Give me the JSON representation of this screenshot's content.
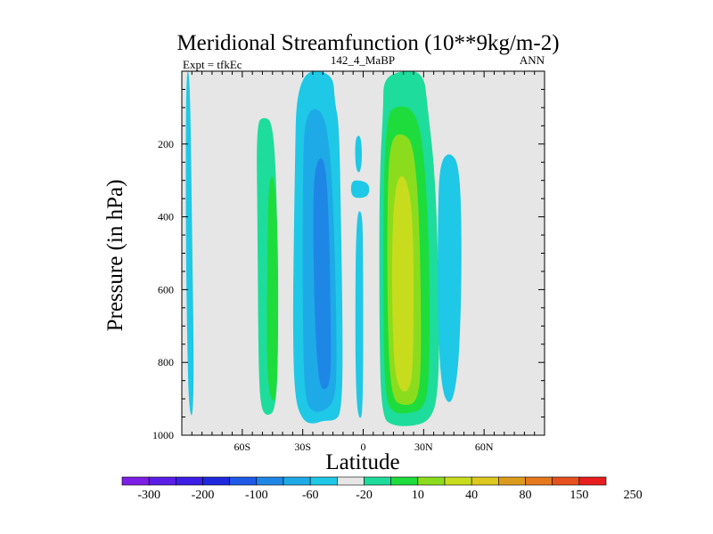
{
  "chart_data": {
    "type": "heatmap",
    "title": "Meridional Streamfunction (10**9kg/m-2)",
    "subtitle_left": "Expt = tfkEc",
    "subtitle_center": "142_4_MaBP",
    "subtitle_right": "ANN",
    "xlabel": "Latitude",
    "ylabel": "Pressure (in hPa)",
    "xlim": [
      -90,
      90
    ],
    "ylim": [
      0,
      1000
    ],
    "y_reversed": true,
    "x_ticks": [
      {
        "value": -60,
        "label": "60S"
      },
      {
        "value": -30,
        "label": "30S"
      },
      {
        "value": 0,
        "label": "0"
      },
      {
        "value": 30,
        "label": "30N"
      },
      {
        "value": 60,
        "label": "60N"
      }
    ],
    "y_ticks": [
      {
        "value": 200,
        "label": "200"
      },
      {
        "value": 400,
        "label": "400"
      },
      {
        "value": 600,
        "label": "600"
      },
      {
        "value": 800,
        "label": "800"
      },
      {
        "value": 1000,
        "label": "1000"
      }
    ],
    "background_color": "#e6e6e6",
    "colorbar": {
      "colors": [
        "#7d1ee6",
        "#5a1ee6",
        "#3c1ee6",
        "#1e28dc",
        "#1e5ae6",
        "#1e87e6",
        "#1eaae6",
        "#1ec8e6",
        "#e6e6e6",
        "#1edc9b",
        "#1edc3c",
        "#8cdc1e",
        "#c8dc1e",
        "#dcc81e",
        "#dc9b1e",
        "#e6781e",
        "#e6501e",
        "#e61e1e"
      ],
      "labels": [
        "-300",
        "-200",
        "-100",
        "-60",
        "-20",
        "10",
        "40",
        "80",
        "150",
        "250"
      ]
    },
    "contours": [
      {
        "color": "#1ec8e6",
        "points": [
          [
            -88,
            0
          ],
          [
            -86,
            0
          ],
          [
            -85,
            400
          ],
          [
            -84,
            800
          ],
          [
            -84.5,
            950
          ],
          [
            -86,
            940
          ],
          [
            -87,
            850
          ],
          [
            -88,
            500
          ]
        ]
      },
      {
        "color": "#1edc9b",
        "points": [
          [
            -53,
            140
          ],
          [
            -49,
            125
          ],
          [
            -45,
            140
          ],
          [
            -43,
            300
          ],
          [
            -42,
            700
          ],
          [
            -43,
            930
          ],
          [
            -48,
            950
          ],
          [
            -51,
            920
          ],
          [
            -52,
            800
          ],
          [
            -52.5,
            400
          ]
        ]
      },
      {
        "color": "#1edc3c",
        "points": [
          [
            -47,
            300
          ],
          [
            -44,
            280
          ],
          [
            -42,
            500
          ],
          [
            -42.5,
            900
          ],
          [
            -46,
            910
          ],
          [
            -48,
            800
          ],
          [
            -47.5,
            500
          ]
        ]
      },
      {
        "color": "#1ec8e6",
        "points": [
          [
            -33,
            0
          ],
          [
            -15,
            0
          ],
          [
            -14,
            90
          ],
          [
            -12,
            140
          ],
          [
            -11,
            400
          ],
          [
            -10,
            800
          ],
          [
            -11,
            940
          ],
          [
            -14,
            960
          ],
          [
            -20,
            960
          ],
          [
            -25,
            970
          ],
          [
            -30,
            960
          ],
          [
            -34,
            900
          ],
          [
            -35,
            700
          ],
          [
            -34,
            300
          ]
        ]
      },
      {
        "color": "#1eaae6",
        "points": [
          [
            -29,
            110
          ],
          [
            -20,
            100
          ],
          [
            -16,
            230
          ],
          [
            -14,
            500
          ],
          [
            -13,
            800
          ],
          [
            -14,
            900
          ],
          [
            -18,
            930
          ],
          [
            -25,
            940
          ],
          [
            -29,
            900
          ],
          [
            -30,
            700
          ],
          [
            -30,
            300
          ]
        ]
      },
      {
        "color": "#1e87e6",
        "points": [
          [
            -24,
            250
          ],
          [
            -19,
            230
          ],
          [
            -17,
            400
          ],
          [
            -16,
            700
          ],
          [
            -16,
            850
          ],
          [
            -19,
            880
          ],
          [
            -22,
            860
          ],
          [
            -24,
            700
          ],
          [
            -25,
            400
          ]
        ]
      },
      {
        "color": "#1ec8e6",
        "points": [
          [
            -4,
            180
          ],
          [
            -1,
            175
          ],
          [
            -0.5,
            250
          ],
          [
            -2,
            285
          ],
          [
            -4,
            260
          ]
        ]
      },
      {
        "color": "#1ec8e6",
        "points": [
          [
            -6,
            300
          ],
          [
            -1,
            300
          ],
          [
            3,
            310
          ],
          [
            3,
            340
          ],
          [
            -1,
            350
          ],
          [
            -6,
            345
          ]
        ]
      },
      {
        "color": "#1ec8e6",
        "points": [
          [
            -3.5,
            390
          ],
          [
            -0.5,
            380
          ],
          [
            0,
            500
          ],
          [
            0,
            940
          ],
          [
            -2,
            960
          ],
          [
            -3.5,
            900
          ],
          [
            -4,
            700
          ]
        ]
      },
      {
        "color": "#1edc9b",
        "points": [
          [
            10,
            25
          ],
          [
            17,
            0
          ],
          [
            30,
            0
          ],
          [
            32,
            100
          ],
          [
            36,
            300
          ],
          [
            38,
            700
          ],
          [
            37,
            900
          ],
          [
            33,
            960
          ],
          [
            25,
            975
          ],
          [
            15,
            975
          ],
          [
            9,
            950
          ],
          [
            8,
            700
          ],
          [
            8,
            300
          ],
          [
            10,
            100
          ]
        ]
      },
      {
        "color": "#1edc3c",
        "points": [
          [
            12,
            120
          ],
          [
            16,
            95
          ],
          [
            25,
            100
          ],
          [
            30,
            200
          ],
          [
            33,
            500
          ],
          [
            33,
            850
          ],
          [
            30,
            930
          ],
          [
            22,
            940
          ],
          [
            15,
            940
          ],
          [
            11,
            900
          ],
          [
            10,
            700
          ],
          [
            10,
            300
          ]
        ]
      },
      {
        "color": "#8cdc1e",
        "points": [
          [
            14,
            180
          ],
          [
            20,
            170
          ],
          [
            25,
            200
          ],
          [
            28,
            400
          ],
          [
            29,
            800
          ],
          [
            27,
            910
          ],
          [
            20,
            920
          ],
          [
            14,
            900
          ],
          [
            12,
            700
          ],
          [
            12,
            300
          ]
        ]
      },
      {
        "color": "#c8dc1e",
        "points": [
          [
            16,
            300
          ],
          [
            21,
            280
          ],
          [
            25,
            400
          ],
          [
            25,
            800
          ],
          [
            23,
            880
          ],
          [
            18,
            880
          ],
          [
            15,
            800
          ],
          [
            14,
            500
          ]
        ]
      },
      {
        "color": "#1ec8e6",
        "points": [
          [
            38,
            250
          ],
          [
            43,
            220
          ],
          [
            48,
            260
          ],
          [
            49,
            500
          ],
          [
            48,
            750
          ],
          [
            46,
            870
          ],
          [
            43,
            920
          ],
          [
            39,
            880
          ],
          [
            37,
            700
          ],
          [
            37,
            400
          ]
        ]
      }
    ]
  }
}
